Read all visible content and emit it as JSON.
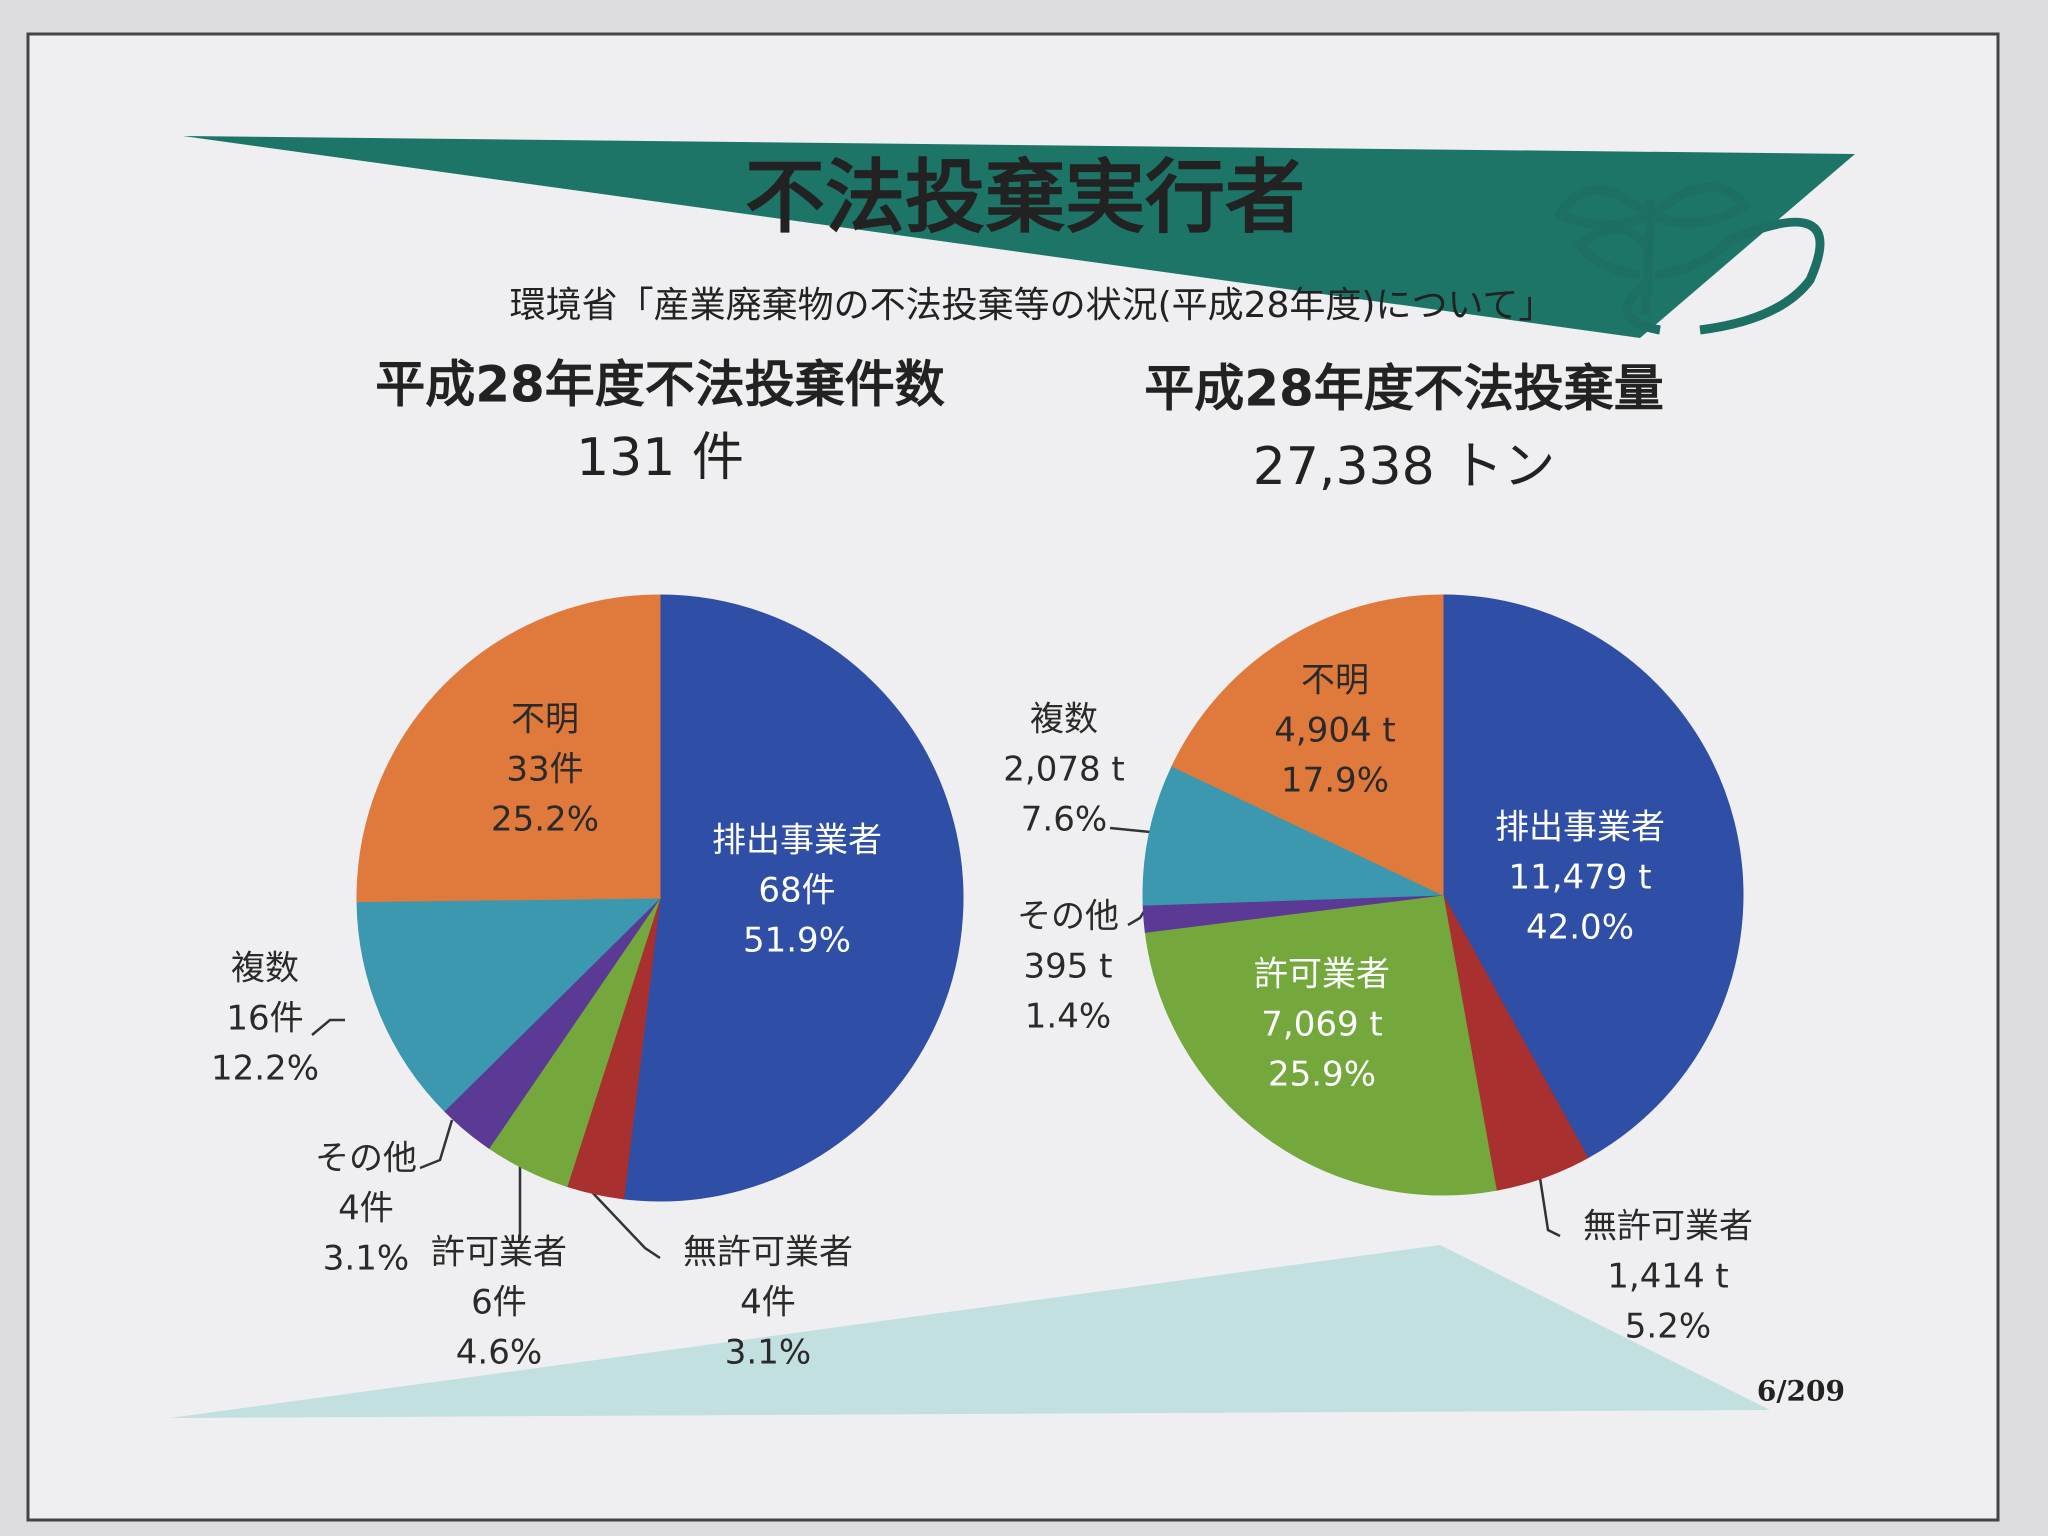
{
  "title": "不法投棄実行者",
  "subtitle": "環境省「産業廃棄物の不法投棄等の状況(平成28年度)について」",
  "page_number": "6/209",
  "chart_data": [
    {
      "type": "pie",
      "title": "平成28年度不法投棄件数",
      "subtitle": "131 件",
      "categories": [
        "排出事業者",
        "無許可業者",
        "許可業者",
        "その他",
        "複数",
        "不明"
      ],
      "values": [
        68,
        4,
        6,
        4,
        16,
        33
      ],
      "value_labels": [
        "68件",
        "4件",
        "6件",
        "4件",
        "16件",
        "33件"
      ],
      "percents": [
        51.9,
        3.1,
        4.6,
        3.1,
        12.2,
        25.2
      ],
      "percent_labels": [
        "51.9%",
        "3.1%",
        "4.6%",
        "3.1%",
        "12.2%",
        "25.2%"
      ],
      "colors": [
        "#2f4ea6",
        "#a8302f",
        "#74a83c",
        "#5a3a94",
        "#3b98ae",
        "#e07a3c"
      ]
    },
    {
      "type": "pie",
      "title": "平成28年度不法投棄量",
      "subtitle": "27,338 トン",
      "categories": [
        "排出事業者",
        "無許可業者",
        "許可業者",
        "その他",
        "複数",
        "不明"
      ],
      "values": [
        11479,
        1414,
        7069,
        395,
        2078,
        4904
      ],
      "value_labels": [
        "11,479 t",
        "1,414 t",
        "7,069 t",
        "395 t",
        "2,078 t",
        "4,904 t"
      ],
      "percents": [
        42.0,
        5.2,
        25.9,
        1.4,
        7.6,
        17.9
      ],
      "percent_labels": [
        "42.0%",
        "5.2%",
        "25.9%",
        "1.4%",
        "7.6%",
        "17.9%"
      ],
      "colors": [
        "#2f4ea6",
        "#a8302f",
        "#74a83c",
        "#5a3a94",
        "#3b98ae",
        "#e07a3c"
      ]
    }
  ]
}
